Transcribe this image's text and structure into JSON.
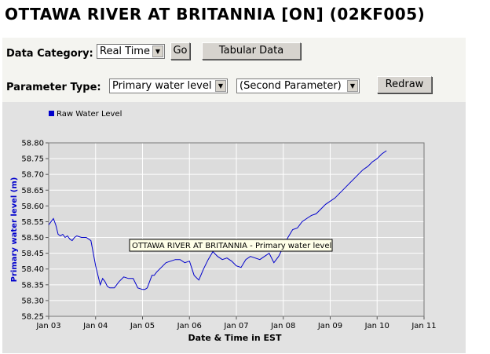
{
  "title": "OTTAWA RIVER AT BRITANNIA [ON] (02KF005)",
  "controls": {
    "data_category_label": "Data Category:",
    "data_category_value": "Real Time",
    "go_label": "Go",
    "tabular_label": "Tabular Data",
    "parameter_type_label": "Parameter Type:",
    "parameter_value": "Primary water level",
    "second_parameter_value": "(Second Parameter)",
    "redraw_label": "Redraw"
  },
  "icons": {
    "dropdown": "chevron-down-icon"
  },
  "chart_data": {
    "type": "line",
    "title": "",
    "xlabel": "Date & Time in EST",
    "ylabel": "Primary water level (m)",
    "ylim": [
      58.25,
      58.8
    ],
    "yticks": [
      "58.25",
      "58.30",
      "58.35",
      "58.40",
      "58.45",
      "58.50",
      "58.55",
      "58.60",
      "58.65",
      "58.70",
      "58.75",
      "58.80"
    ],
    "xlim": [
      "Jan 03",
      "Jan 11"
    ],
    "xticks": [
      "Jan 03",
      "Jan 04",
      "Jan 05",
      "Jan 06",
      "Jan 07",
      "Jan 08",
      "Jan 09",
      "Jan 10",
      "Jan 11"
    ],
    "grid": true,
    "legend_position": "top-left",
    "tooltip": "OTTAWA RIVER AT BRITANNIA - Primary water level",
    "colors": {
      "series": "#0000cc",
      "plot_bg": "#dcdcdc",
      "grid": "#ffffff",
      "axis_label": "#0000cc"
    },
    "series": [
      {
        "name": "Raw Water Level",
        "x": [
          0,
          0.1,
          0.15,
          0.2,
          0.25,
          0.3,
          0.35,
          0.4,
          0.45,
          0.5,
          0.55,
          0.6,
          0.7,
          0.8,
          0.9,
          1.0,
          1.05,
          1.1,
          1.15,
          1.2,
          1.25,
          1.3,
          1.4,
          1.5,
          1.6,
          1.7,
          1.8,
          1.9,
          2.0,
          2.05,
          2.1,
          2.15,
          2.2,
          2.25,
          2.3,
          2.4,
          2.5,
          2.6,
          2.7,
          2.8,
          2.9,
          3.0,
          3.1,
          3.2,
          3.3,
          3.4,
          3.5,
          3.6,
          3.7,
          3.8,
          3.9,
          4.0,
          4.1,
          4.2,
          4.3,
          4.4,
          4.5,
          4.6,
          4.7,
          4.8,
          4.9,
          5.0,
          5.1,
          5.2,
          5.3,
          5.4,
          5.5,
          5.6,
          5.7,
          5.8,
          5.9,
          6.0,
          6.1,
          6.2,
          6.3,
          6.4,
          6.5,
          6.6,
          6.7,
          6.8,
          6.9,
          7.0,
          7.1,
          7.2
        ],
        "y": [
          58.54,
          58.56,
          58.54,
          58.51,
          58.505,
          58.51,
          58.5,
          58.505,
          58.495,
          58.49,
          58.5,
          58.505,
          58.5,
          58.5,
          58.49,
          58.41,
          58.38,
          58.35,
          58.37,
          58.36,
          58.345,
          58.34,
          58.34,
          58.36,
          58.375,
          58.37,
          58.37,
          58.34,
          58.335,
          58.335,
          58.34,
          58.36,
          58.38,
          58.38,
          58.39,
          58.405,
          58.42,
          58.425,
          58.43,
          58.43,
          58.42,
          58.425,
          58.38,
          58.365,
          58.4,
          58.43,
          58.455,
          58.44,
          58.43,
          58.435,
          58.425,
          58.41,
          58.405,
          58.43,
          58.44,
          58.435,
          58.43,
          58.44,
          58.45,
          58.42,
          58.44,
          58.47,
          58.5,
          58.525,
          58.53,
          58.55,
          58.56,
          58.57,
          58.575,
          58.59,
          58.605,
          58.615,
          58.625,
          58.64,
          58.655,
          58.67,
          58.685,
          58.7,
          58.715,
          58.725,
          58.74,
          58.75,
          58.765,
          58.775
        ]
      }
    ]
  }
}
